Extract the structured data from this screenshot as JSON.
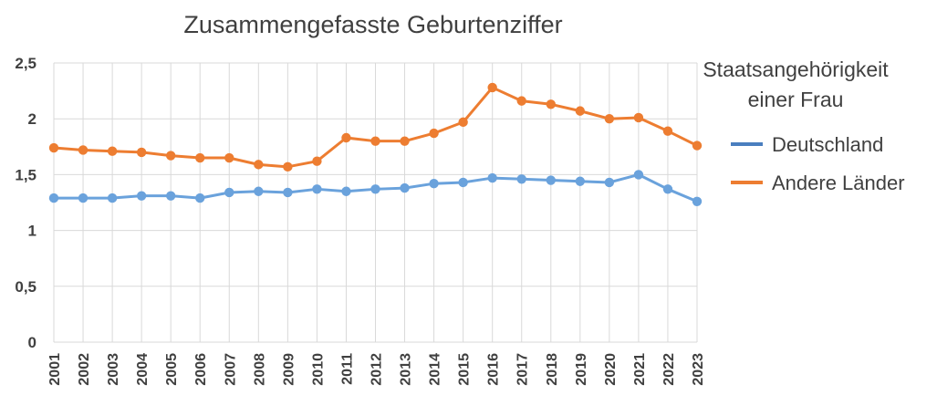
{
  "chart_data": {
    "type": "line",
    "title": "Zusammengefasste Geburtenziffer",
    "xlabel": "",
    "ylabel": "",
    "ylim": [
      0,
      2.5
    ],
    "ytick_labels": [
      "0",
      "0,5",
      "1",
      "1,5",
      "2",
      "2,5"
    ],
    "ytick_values": [
      0,
      0.5,
      1,
      1.5,
      2,
      2.5
    ],
    "grid": true,
    "legend_position": "right",
    "legend_title": "Staatsangehörigkeit einer Frau",
    "legend_title_lines": [
      "Staatsangehörigkeit",
      "einer Frau"
    ],
    "categories": [
      "2001",
      "2002",
      "2003",
      "2004",
      "2005",
      "2006",
      "2007",
      "2008",
      "2009",
      "2010",
      "2011",
      "2012",
      "2013",
      "2014",
      "2015",
      "2016",
      "2017",
      "2018",
      "2019",
      "2020",
      "2021",
      "2022",
      "2023"
    ],
    "series": [
      {
        "name": "Deutschland",
        "color": "#4a7ebf",
        "line_color": "#6aa2dc",
        "values": [
          1.29,
          1.29,
          1.29,
          1.31,
          1.31,
          1.29,
          1.34,
          1.35,
          1.34,
          1.37,
          1.35,
          1.37,
          1.38,
          1.42,
          1.43,
          1.47,
          1.46,
          1.45,
          1.44,
          1.43,
          1.5,
          1.37,
          1.26
        ]
      },
      {
        "name": "Andere Länder",
        "color": "#ed7d31",
        "line_color": "#ed7d31",
        "values": [
          1.74,
          1.72,
          1.71,
          1.7,
          1.67,
          1.65,
          1.65,
          1.59,
          1.57,
          1.62,
          1.83,
          1.8,
          1.8,
          1.87,
          1.97,
          2.28,
          2.16,
          2.13,
          2.07,
          2.0,
          2.01,
          1.89,
          1.76
        ]
      }
    ]
  }
}
